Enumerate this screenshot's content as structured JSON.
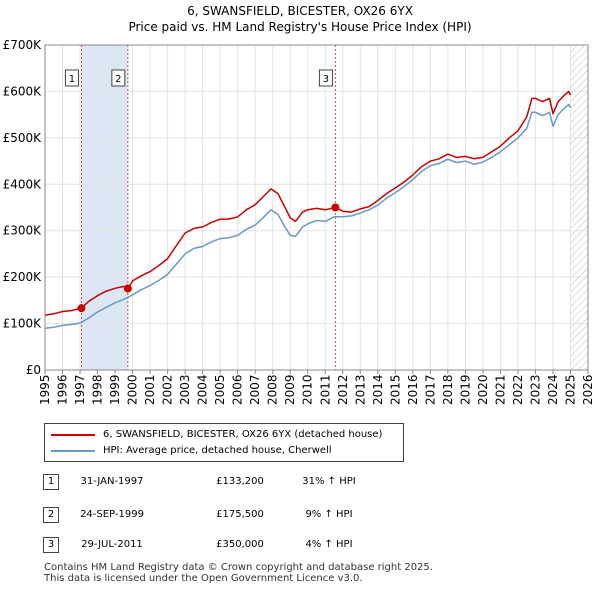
{
  "title_line1": "6, SWANSFIELD, BICESTER, OX26 6YX",
  "title_line2": "Price paid vs. HM Land Registry's House Price Index (HPI)",
  "colors": {
    "property": "#cc0000",
    "hpi": "#6699cc",
    "shade": "#dde6f4",
    "vline": "#dd4444"
  },
  "chart_data": {
    "type": "line",
    "title": "Price paid vs. HM Land Registry's House Price Index (HPI)",
    "xlabel": "",
    "ylabel": "",
    "xlim": [
      1995,
      2026
    ],
    "ylim": [
      0,
      700000
    ],
    "y_ticks": [
      0,
      100000,
      200000,
      300000,
      400000,
      500000,
      600000,
      700000
    ],
    "y_tick_labels": [
      "£0",
      "£100K",
      "£200K",
      "£300K",
      "£400K",
      "£500K",
      "£600K",
      "£700K"
    ],
    "x_ticks": [
      1995,
      1996,
      1997,
      1998,
      1999,
      2000,
      2001,
      2002,
      2003,
      2004,
      2005,
      2006,
      2007,
      2008,
      2009,
      2010,
      2011,
      2012,
      2013,
      2014,
      2015,
      2016,
      2017,
      2018,
      2019,
      2020,
      2021,
      2022,
      2023,
      2024,
      2025,
      2026
    ],
    "x_tick_labels": [
      "1995",
      "1996",
      "1997",
      "1998",
      "1999",
      "2000",
      "2001",
      "2002",
      "2003",
      "2004",
      "2005",
      "2006",
      "2007",
      "2008",
      "2009",
      "2010",
      "2011",
      "2012",
      "2013",
      "2014",
      "2015",
      "2016",
      "2017",
      "2018",
      "2019",
      "2020",
      "2021",
      "2022",
      "2023",
      "2024",
      "2025",
      "2026"
    ],
    "shaded_spans": [
      [
        1997.08,
        1999.73
      ]
    ],
    "future_hatch_from": 2025.0,
    "series": [
      {
        "name": "6, SWANSFIELD, BICESTER, OX26 6YX (detached house)",
        "color": "#cc0000",
        "x": [
          1995.0,
          1995.5,
          1996.0,
          1996.5,
          1997.08,
          1997.5,
          1998.0,
          1998.5,
          1999.0,
          1999.5,
          1999.73,
          2000.0,
          2000.5,
          2001.0,
          2001.5,
          2002.0,
          2002.5,
          2003.0,
          2003.5,
          2004.0,
          2004.5,
          2005.0,
          2005.5,
          2006.0,
          2006.5,
          2007.0,
          2007.5,
          2007.9,
          2008.3,
          2008.7,
          2009.0,
          2009.3,
          2009.7,
          2010.0,
          2010.5,
          2011.0,
          2011.58,
          2012.0,
          2012.5,
          2013.0,
          2013.5,
          2014.0,
          2014.5,
          2015.0,
          2015.5,
          2016.0,
          2016.5,
          2017.0,
          2017.5,
          2018.0,
          2018.5,
          2019.0,
          2019.5,
          2020.0,
          2020.5,
          2021.0,
          2021.5,
          2022.0,
          2022.5,
          2022.8,
          2023.0,
          2023.4,
          2023.8,
          2024.0,
          2024.3,
          2024.6,
          2024.9,
          2025.0
        ],
        "values": [
          118000,
          121000,
          126000,
          128000,
          133200,
          148000,
          160000,
          170000,
          176000,
          180000,
          175500,
          192000,
          203000,
          212000,
          225000,
          240000,
          268000,
          295000,
          305000,
          308000,
          318000,
          325000,
          325000,
          330000,
          345000,
          356000,
          375000,
          390000,
          380000,
          350000,
          328000,
          320000,
          340000,
          345000,
          348000,
          345000,
          350000,
          342000,
          340000,
          347000,
          352000,
          365000,
          380000,
          392000,
          405000,
          420000,
          438000,
          450000,
          455000,
          465000,
          458000,
          460000,
          455000,
          458000,
          470000,
          482000,
          500000,
          515000,
          545000,
          585000,
          585000,
          578000,
          585000,
          552000,
          578000,
          590000,
          600000,
          592000
        ]
      },
      {
        "name": "HPI: Average price, detached house, Cherwell",
        "color": "#6699cc",
        "x": [
          1995.0,
          1995.5,
          1996.0,
          1996.5,
          1997.0,
          1997.5,
          1998.0,
          1998.5,
          1999.0,
          1999.5,
          2000.0,
          2000.5,
          2001.0,
          2001.5,
          2002.0,
          2002.5,
          2003.0,
          2003.5,
          2004.0,
          2004.5,
          2005.0,
          2005.5,
          2006.0,
          2006.5,
          2007.0,
          2007.5,
          2007.9,
          2008.3,
          2008.7,
          2009.0,
          2009.3,
          2009.7,
          2010.0,
          2010.5,
          2011.0,
          2011.5,
          2012.0,
          2012.5,
          2013.0,
          2013.5,
          2014.0,
          2014.5,
          2015.0,
          2015.5,
          2016.0,
          2016.5,
          2017.0,
          2017.5,
          2018.0,
          2018.5,
          2019.0,
          2019.5,
          2020.0,
          2020.5,
          2021.0,
          2021.5,
          2022.0,
          2022.5,
          2022.8,
          2023.0,
          2023.4,
          2023.8,
          2024.0,
          2024.3,
          2024.6,
          2024.9,
          2025.0
        ],
        "values": [
          90000,
          92000,
          96000,
          98000,
          101000,
          112000,
          125000,
          135000,
          145000,
          152000,
          162000,
          173000,
          182000,
          193000,
          206000,
          228000,
          250000,
          262000,
          266000,
          276000,
          283000,
          285000,
          290000,
          303000,
          312000,
          330000,
          345000,
          335000,
          308000,
          290000,
          288000,
          308000,
          315000,
          322000,
          320000,
          330000,
          330000,
          332000,
          338000,
          345000,
          355000,
          370000,
          382000,
          395000,
          410000,
          428000,
          440000,
          445000,
          454000,
          447000,
          450000,
          443000,
          448000,
          458000,
          470000,
          485000,
          500000,
          520000,
          555000,
          555000,
          548000,
          555000,
          525000,
          550000,
          562000,
          572000,
          565000
        ]
      }
    ],
    "sales": [
      {
        "label": "1",
        "x": 1997.08,
        "value": 133200
      },
      {
        "label": "2",
        "x": 1999.73,
        "value": 175500
      },
      {
        "label": "3",
        "x": 2011.58,
        "value": 350000
      }
    ]
  },
  "legend": {
    "property": "6, SWANSFIELD, BICESTER, OX26 6YX (detached house)",
    "hpi": "HPI: Average price, detached house, Cherwell"
  },
  "transactions": [
    {
      "num": "1",
      "date": "31-JAN-1997",
      "price": "£133,200",
      "hpi": "31% ↑ HPI"
    },
    {
      "num": "2",
      "date": "24-SEP-1999",
      "price": "£175,500",
      "hpi": "9% ↑ HPI"
    },
    {
      "num": "3",
      "date": "29-JUL-2011",
      "price": "£350,000",
      "hpi": "4% ↑ HPI"
    }
  ],
  "footer": {
    "line1": "Contains HM Land Registry data © Crown copyright and database right 2025.",
    "line2": "This data is licensed under the Open Government Licence v3.0."
  }
}
